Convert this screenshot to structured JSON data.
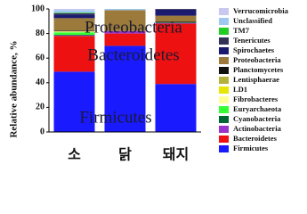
{
  "chart_data": {
    "type": "stacked_bar",
    "y_axis_label": "Relative abundance, %",
    "categories": [
      "소",
      "닭",
      "돼지"
    ],
    "ylim": [
      0,
      100
    ],
    "yticks": [
      0,
      20,
      40,
      60,
      80,
      100
    ],
    "annotations": [
      "Proteobacteria",
      "Bacteroidetes",
      "Firmicutes"
    ],
    "series": [
      {
        "name": "Firmicutes",
        "color": "#1a1aff",
        "values": [
          49,
          70,
          39
        ]
      },
      {
        "name": "Bacteroidetes",
        "color": "#ee1111",
        "values": [
          29,
          10,
          49
        ]
      },
      {
        "name": "Actinobacteria",
        "color": "#9933cc",
        "values": [
          0.5,
          2,
          0.5
        ]
      },
      {
        "name": "Cyanobacteria",
        "color": "#006633",
        "values": [
          0.5,
          0,
          0.5
        ]
      },
      {
        "name": "Euryarchaeota",
        "color": "#33ff33",
        "values": [
          2,
          0,
          0
        ]
      },
      {
        "name": "Fibrobacteres",
        "color": "#ffff99",
        "values": [
          0.5,
          0,
          0
        ]
      },
      {
        "name": "LD1",
        "color": "#e6e600",
        "values": [
          0,
          0,
          0
        ]
      },
      {
        "name": "Lentisphaerae",
        "color": "#b3b33c",
        "values": [
          0.5,
          0,
          0
        ]
      },
      {
        "name": "Planctomycetes",
        "color": "#111111",
        "values": [
          0.5,
          0,
          0.5
        ]
      },
      {
        "name": "Proteobacteria",
        "color": "#9b7a3c",
        "values": [
          10,
          17,
          5
        ]
      },
      {
        "name": "Spirochaetes",
        "color": "#1a1a6e",
        "values": [
          3,
          0,
          5
        ]
      },
      {
        "name": "Tenericutes",
        "color": "#333355",
        "values": [
          1,
          0,
          0.5
        ]
      },
      {
        "name": "TM7",
        "color": "#22cc22",
        "values": [
          0.5,
          0,
          0
        ]
      },
      {
        "name": "Unclassified",
        "color": "#9ec8f0",
        "values": [
          2,
          1,
          0
        ]
      },
      {
        "name": "Verrucomicrobia",
        "color": "#c8c8f0",
        "values": [
          1,
          0,
          0
        ]
      }
    ]
  }
}
